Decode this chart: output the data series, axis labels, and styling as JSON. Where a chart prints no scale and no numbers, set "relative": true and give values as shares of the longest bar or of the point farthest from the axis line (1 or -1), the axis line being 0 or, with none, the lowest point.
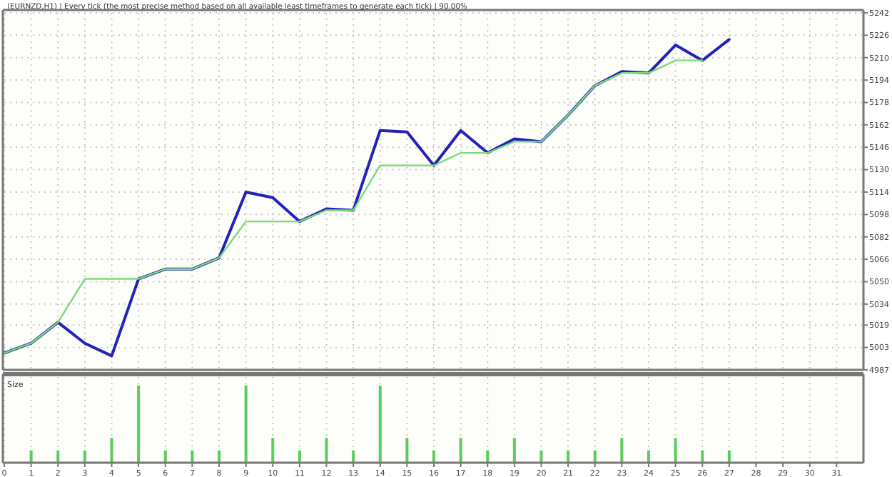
{
  "chart_data": [
    {
      "type": "line",
      "title": "(EURNZD,H1) | Every tick (the most precise method based on all available least timeframes to generate each tick) | 90.00%",
      "x": [
        0,
        1,
        2,
        3,
        4,
        5,
        6,
        7,
        8,
        9,
        10,
        11,
        12,
        13,
        14,
        15,
        16,
        17,
        18,
        19,
        20,
        21,
        22,
        23,
        24,
        25,
        26,
        27
      ],
      "series": [
        {
          "color": "#2222b8",
          "values": [
            4999,
            5006,
            5021,
            5006,
            4997,
            5052,
            5059,
            5059,
            5067,
            5114,
            5110,
            5093,
            5102,
            5101,
            5158,
            5157,
            5133,
            5158,
            5142,
            5152,
            5150,
            5169,
            5190,
            5200,
            5199,
            5219,
            5208,
            5223
          ]
        },
        {
          "color": "#78dc78",
          "values": [
            4999,
            5006,
            5021,
            5052,
            5052,
            5052,
            5059,
            5059,
            5067,
            5093,
            5093,
            5093,
            5101,
            5101,
            5133,
            5133,
            5133,
            5142,
            5142,
            5150,
            5150,
            5169,
            5190,
            5199,
            5199,
            5208,
            5208,
            null
          ]
        }
      ],
      "xlim": [
        0,
        32
      ],
      "xticks": [
        0,
        1,
        2,
        3,
        4,
        5,
        6,
        7,
        8,
        9,
        10,
        11,
        12,
        13,
        14,
        15,
        16,
        17,
        18,
        19,
        20,
        21,
        22,
        23,
        24,
        25,
        26,
        27,
        28,
        29,
        30,
        31
      ],
      "ylim": [
        4987,
        5242
      ],
      "yticks": [
        4987,
        5003,
        5019,
        5034,
        5050,
        5066,
        5082,
        5098,
        5114,
        5130,
        5146,
        5162,
        5178,
        5194,
        5210,
        5226,
        5242
      ],
      "tick_labels": "y",
      "grid": true
    },
    {
      "type": "bar",
      "title": "Size",
      "relative": true,
      "x": [
        1,
        2,
        3,
        4,
        5,
        6,
        7,
        8,
        9,
        10,
        11,
        12,
        13,
        14,
        15,
        16,
        17,
        18,
        19,
        20,
        21,
        22,
        23,
        24,
        25,
        26,
        27
      ],
      "values": [
        0.16,
        0.16,
        0.16,
        0.32,
        1,
        0.16,
        0.16,
        0.16,
        1,
        0.32,
        0.16,
        0.32,
        0.16,
        1,
        0.32,
        0.16,
        0.32,
        0.16,
        0.32,
        0.16,
        0.16,
        0.16,
        0.32,
        0.16,
        0.32,
        0.16,
        0.16
      ],
      "color": "#5ccc5c",
      "xlim": [
        0,
        32
      ],
      "xticks": [
        0,
        1,
        2,
        3,
        4,
        5,
        6,
        7,
        8,
        9,
        10,
        11,
        12,
        13,
        14,
        15,
        16,
        17,
        18,
        19,
        20,
        21,
        22,
        23,
        24,
        25,
        26,
        27,
        28,
        29,
        30,
        31
      ],
      "tick_labels": "x",
      "grid": "x"
    }
  ]
}
